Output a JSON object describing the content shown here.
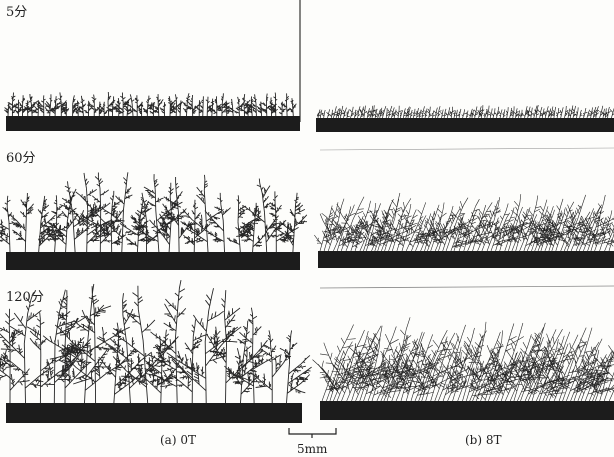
{
  "rows": [
    {
      "label": "5分"
    },
    {
      "label": "60分"
    },
    {
      "label": "120分"
    }
  ],
  "columns": [
    {
      "label": "(a) 0T"
    },
    {
      "label": "(b) 8T"
    }
  ],
  "scale_bar": {
    "label": "5mm"
  }
}
